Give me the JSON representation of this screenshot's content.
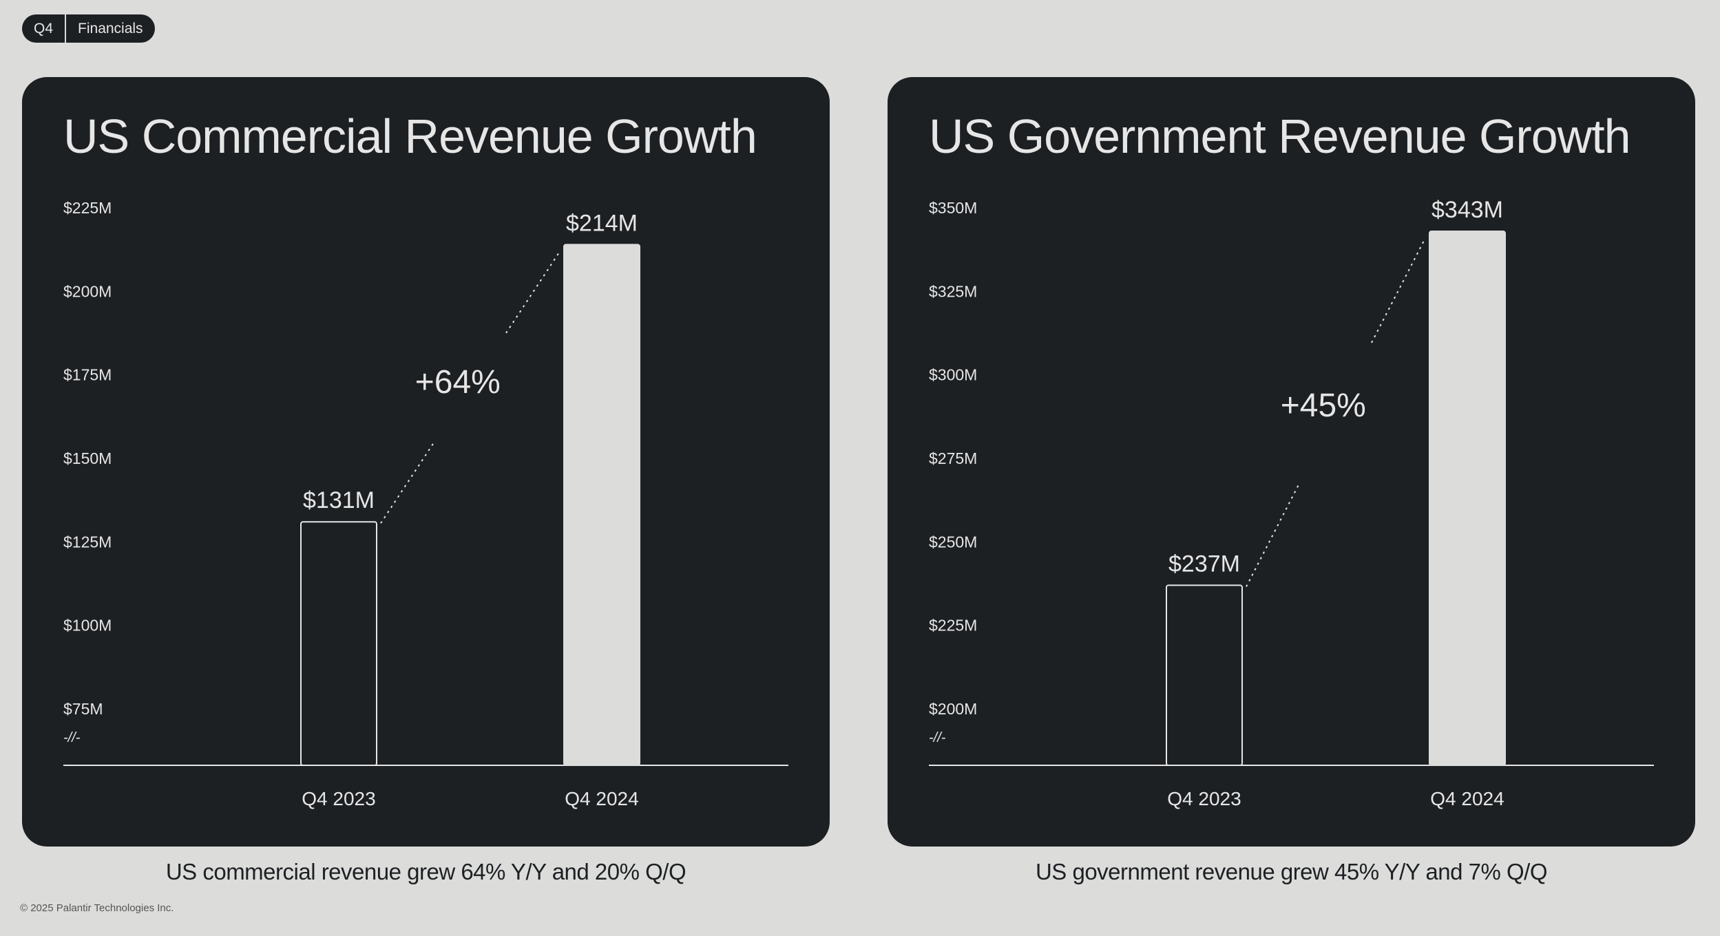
{
  "header": {
    "tag": "Q4",
    "section": "Financials"
  },
  "footer": {
    "copyright": "© 2025 Palantir Technologies Inc."
  },
  "theme": {
    "card_bg": "#1d2023",
    "page_bg": "#dcdcdb",
    "bar_fill": "#dcdcdb",
    "text_light": "#e6e6e6"
  },
  "axis_break_symbol": "-//-",
  "chart_data": [
    {
      "type": "bar",
      "title": "US Commercial Revenue Growth",
      "categories": [
        "Q4 2023",
        "Q4 2024"
      ],
      "values": [
        131,
        214
      ],
      "value_labels": [
        "$131M",
        "$214M"
      ],
      "bar_styles": [
        "outline",
        "filled"
      ],
      "yticks": [
        75,
        100,
        125,
        150,
        175,
        200,
        225
      ],
      "ytick_labels": [
        "$75M",
        "$100M",
        "$125M",
        "$150M",
        "$175M",
        "$200M",
        "$225M"
      ],
      "ylim": [
        75,
        225
      ],
      "axis_break": true,
      "growth_label": "+64%",
      "caption": "US commercial revenue grew 64% Y/Y and 20% Q/Q"
    },
    {
      "type": "bar",
      "title": "US Government Revenue Growth",
      "categories": [
        "Q4 2023",
        "Q4 2024"
      ],
      "values": [
        237,
        343
      ],
      "value_labels": [
        "$237M",
        "$343M"
      ],
      "bar_styles": [
        "outline",
        "filled"
      ],
      "yticks": [
        200,
        225,
        250,
        275,
        300,
        325,
        350
      ],
      "ytick_labels": [
        "$200M",
        "$225M",
        "$250M",
        "$275M",
        "$300M",
        "$325M",
        "$350M"
      ],
      "ylim": [
        200,
        350
      ],
      "axis_break": true,
      "growth_label": "+45%",
      "caption": "US government revenue grew 45% Y/Y and 7% Q/Q"
    }
  ]
}
